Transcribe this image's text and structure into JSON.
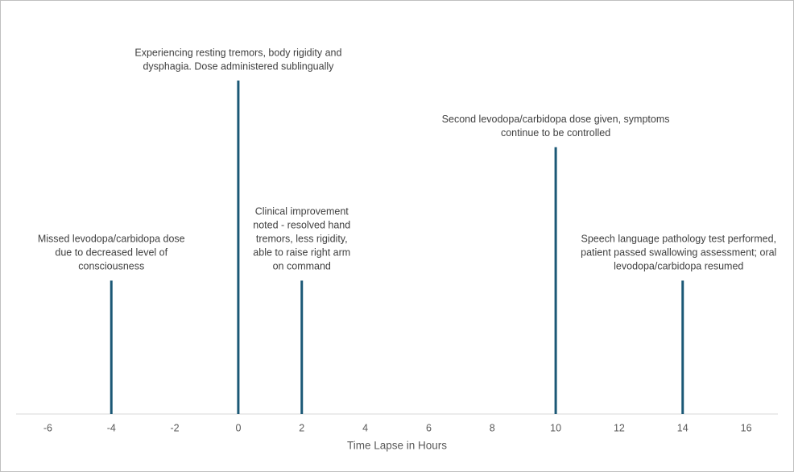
{
  "chart_data": {
    "type": "stem",
    "x_label": "Time Lapse in Hours",
    "x": [
      -4,
      0,
      2,
      10,
      14
    ],
    "values": [
      2,
      5,
      2,
      4,
      2
    ],
    "annotations": [
      [
        "Missed levodopa/carbidopa dose",
        "due to decreased level of",
        "consciousness"
      ],
      [
        "Experiencing resting tremors, body rigidity and",
        "dysphagia. Dose administered sublingually"
      ],
      [
        "Clinical improvement",
        "noted - resolved hand",
        "tremors, less rigidity,",
        "able to raise right arm",
        "on command"
      ],
      [
        "Second levodopa/carbidopa dose given, symptoms",
        "continue to be controlled"
      ],
      [
        "Speech language pathology test performed,",
        "patient passed swallowing assessment; oral",
        "levodopa/carbidopa resumed"
      ]
    ],
    "color": "#1b5876",
    "xlim": [
      -7,
      17
    ],
    "xticks": [
      -6,
      -4,
      -2,
      0,
      2,
      4,
      6,
      8,
      10,
      12,
      14,
      16
    ],
    "ylim": [
      0,
      5
    ]
  }
}
